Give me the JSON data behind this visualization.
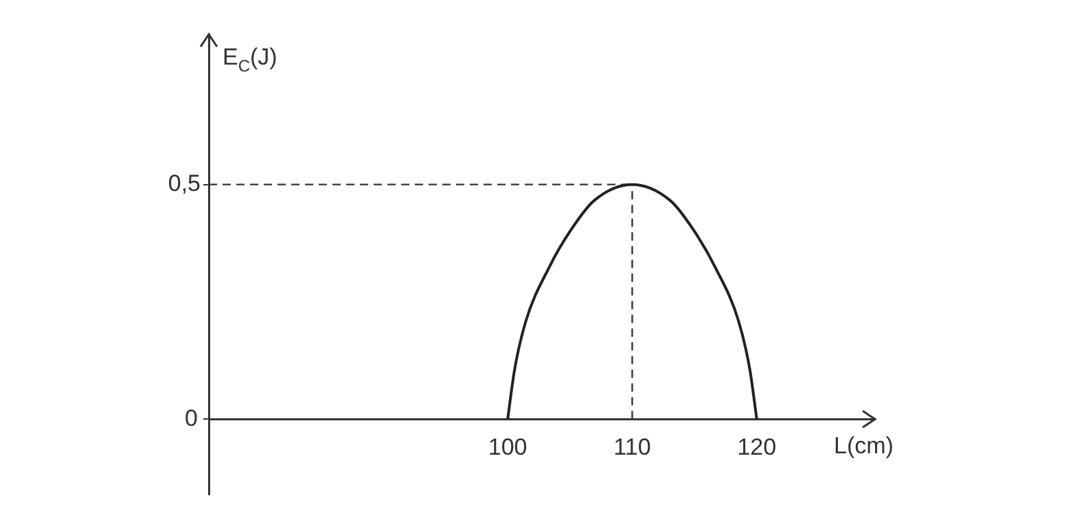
{
  "chart_data": {
    "type": "line",
    "xlabel": "L(cm)",
    "ylabel": "E$_{C}$(J)",
    "x": [
      100,
      100.55,
      101.46,
      103.3,
      105.1,
      106.95,
      110,
      113.05,
      114.9,
      116.7,
      118.54,
      119.45,
      120
    ],
    "values": [
      0,
      0.105,
      0.209,
      0.322,
      0.404,
      0.466,
      0.5,
      0.466,
      0.404,
      0.322,
      0.209,
      0.105,
      0
    ],
    "color": "#222222",
    "marker": "none",
    "line_style": "solid",
    "xlim": [
      76,
      129.5
    ],
    "ylim": [
      -0.16,
      0.82
    ],
    "xticks": [
      100,
      110,
      120
    ],
    "yticks": [
      0,
      {
        "value": 0.5,
        "label": "0,5"
      }
    ],
    "grid": false,
    "legend": false,
    "ref_lines": [
      {
        "axis": "y",
        "value": 0.5,
        "line_style": "dashed",
        "color": "#333333"
      },
      {
        "axis": "x",
        "value": 110,
        "line_style": "dashed",
        "color": "#333333"
      }
    ]
  }
}
